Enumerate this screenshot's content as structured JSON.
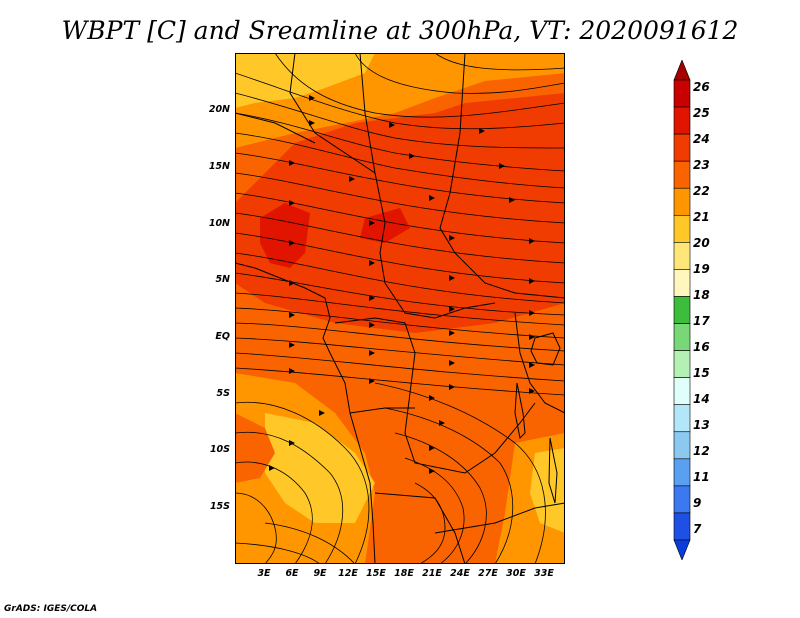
{
  "title": "WBPT [C] and Sreamline at 300hPa, VT: 2020091612",
  "credit": "GrADS: IGES/COLA",
  "axes": {
    "lat_labels": [
      "20N",
      "15N",
      "10N",
      "5N",
      "EQ",
      "5S",
      "10S",
      "15S"
    ],
    "lon_labels": [
      "3E",
      "6E",
      "9E",
      "12E",
      "15E",
      "18E",
      "21E",
      "24E",
      "27E",
      "30E",
      "33E"
    ]
  },
  "colorbar": {
    "labels": [
      "26",
      "25",
      "24",
      "23",
      "22",
      "21",
      "20",
      "19",
      "18",
      "17",
      "16",
      "15",
      "14",
      "13",
      "12",
      "11",
      "9",
      "7"
    ],
    "colors": [
      "#a50000",
      "#c80000",
      "#e11400",
      "#f03c00",
      "#fa6400",
      "#ff9600",
      "#ffc828",
      "#ffe678",
      "#fff7bd",
      "#3cbe3c",
      "#78d878",
      "#b4f0b4",
      "#e0fffa",
      "#b4e6fa",
      "#8cc8f0",
      "#5aa0f0",
      "#3c78f0",
      "#1e50e6",
      "#0a3cdc"
    ]
  },
  "legend_colors": {
    "c21": "#ff9600",
    "c22": "#fa6400",
    "c23": "#f03c00",
    "c24": "#e11400"
  }
}
